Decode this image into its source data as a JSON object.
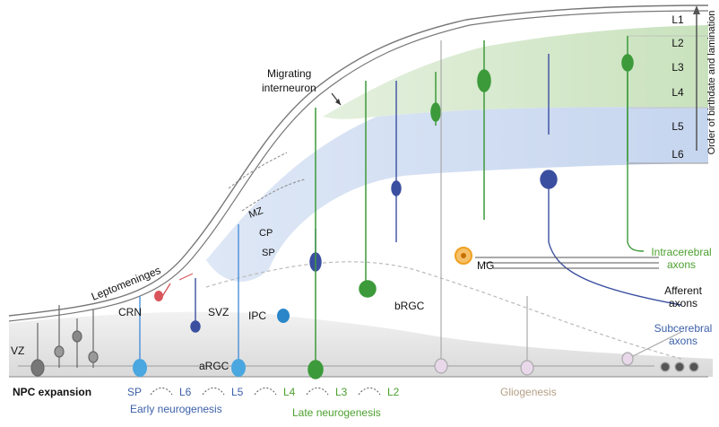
{
  "layers": [
    "L1",
    "L2",
    "L3",
    "L4",
    "L5",
    "L6"
  ],
  "axis_label": "Order of birthdate and lamination",
  "region_labels": {
    "migrating_interneuron": [
      "Migrating",
      "interneuron"
    ],
    "leptomeninges": "Leptomeninges",
    "mz": "MZ",
    "cp": "CP",
    "sp": "SP",
    "crn": "CRN",
    "svz": "SVZ",
    "ipc": "IPC",
    "vz": "VZ",
    "argc": "aRGC",
    "brgc": "bRGC",
    "mg": "MG"
  },
  "axons": {
    "intracerebral": [
      "Intracerebral",
      "axons"
    ],
    "afferent": [
      "Afferent",
      "axons"
    ],
    "subcerebral": [
      "Subcerebral",
      "axons"
    ]
  },
  "timeline": {
    "npc_expansion": "NPC expansion",
    "stages": [
      {
        "label": "SP",
        "color": "#3b5fa8"
      },
      {
        "label": "L6",
        "color": "#3b5fa8"
      },
      {
        "label": "L5",
        "color": "#3b5fa8"
      },
      {
        "label": "L4",
        "color": "#4ca02e"
      },
      {
        "label": "L3",
        "color": "#4ca02e"
      },
      {
        "label": "L2",
        "color": "#4ca02e"
      }
    ],
    "gliogenesis": "Gliogenesis",
    "early_neurogenesis": "Early neurogenesis",
    "late_neurogenesis": "Late neurogenesis"
  },
  "colors": {
    "early": "#3b5fa8",
    "late": "#4ca02e",
    "glia": "#b59f85",
    "crn": "#d9545b",
    "microglia": "#f0a020",
    "green_band": "#cfe5c4",
    "blue_band": "#c7d6ee"
  }
}
